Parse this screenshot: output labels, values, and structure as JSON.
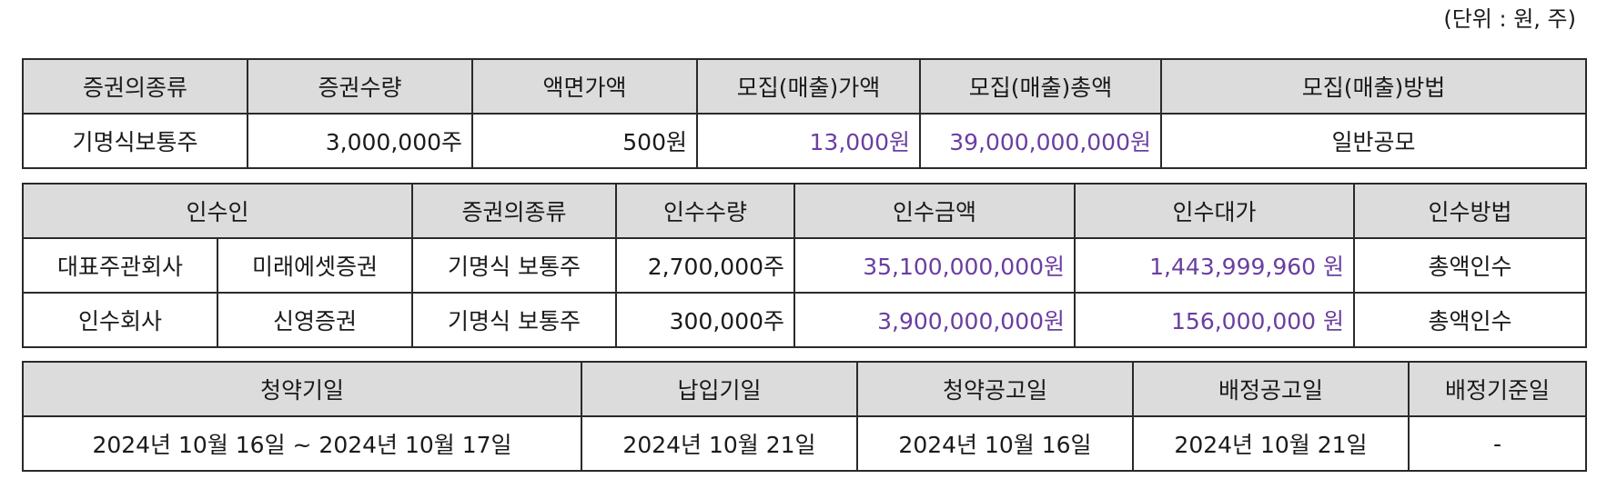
{
  "unit_note": "(단위 : 원, 주)",
  "offering": {
    "headers": [
      "증권의종류",
      "증권수량",
      "액면가액",
      "모집(매출)가액",
      "모집(매출)총액",
      "모집(매출)방법"
    ],
    "row": {
      "type": "기명식보통주",
      "quantity": "3,000,000주",
      "par_value": "500원",
      "offer_price": "13,000원",
      "offer_total": "39,000,000,000원",
      "method": "일반공모"
    }
  },
  "underwriting": {
    "headers": [
      "인수인",
      "증권의종류",
      "인수수량",
      "인수금액",
      "인수대가",
      "인수방법"
    ],
    "rows": [
      {
        "role": "대표주관회사",
        "name": "미래에셋증권",
        "type": "기명식 보통주",
        "quantity": "2,700,000주",
        "amount": "35,100,000,000원",
        "fee": "1,443,999,960 원",
        "method": "총액인수"
      },
      {
        "role": "인수회사",
        "name": "신영증권",
        "type": "기명식 보통주",
        "quantity": "300,000주",
        "amount": "3,900,000,000원",
        "fee": "156,000,000 원",
        "method": "총액인수"
      }
    ]
  },
  "schedule": {
    "headers": [
      "청약기일",
      "납입기일",
      "청약공고일",
      "배정공고일",
      "배정기준일"
    ],
    "row": {
      "subscription_period": "2024년 10월 16일 ~ 2024년 10월 17일",
      "payment_date": "2024년 10월 21일",
      "subscription_notice_date": "2024년 10월 16일",
      "allocation_notice_date": "2024년 10월 21일",
      "allocation_record_date": "-"
    }
  },
  "colors": {
    "highlight": "#6a3ea1",
    "header_bg": "#dcdcdc",
    "border": "#2a2a2a"
  }
}
